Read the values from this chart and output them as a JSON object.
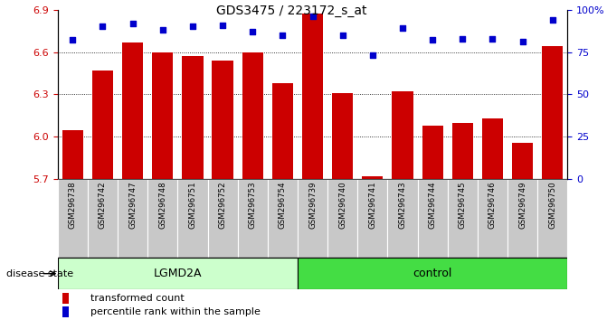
{
  "title": "GDS3475 / 223172_s_at",
  "samples": [
    "GSM296738",
    "GSM296742",
    "GSM296747",
    "GSM296748",
    "GSM296751",
    "GSM296752",
    "GSM296753",
    "GSM296754",
    "GSM296739",
    "GSM296740",
    "GSM296741",
    "GSM296743",
    "GSM296744",
    "GSM296745",
    "GSM296746",
    "GSM296749",
    "GSM296750"
  ],
  "bar_values": [
    6.05,
    6.47,
    6.67,
    6.6,
    6.57,
    6.54,
    6.6,
    6.38,
    6.87,
    6.31,
    5.72,
    6.32,
    6.08,
    6.1,
    6.13,
    5.96,
    6.64
  ],
  "pct_values": [
    82,
    90,
    92,
    88,
    90,
    91,
    87,
    85,
    96,
    85,
    73,
    89,
    82,
    83,
    83,
    81,
    94
  ],
  "ylim_left": [
    5.7,
    6.9
  ],
  "ylim_right": [
    0,
    100
  ],
  "yticks_left": [
    5.7,
    6.0,
    6.3,
    6.6,
    6.9
  ],
  "yticks_right": [
    0,
    25,
    50,
    75,
    100
  ],
  "lgmd2a_count": 8,
  "group_labels": [
    "LGMD2A",
    "control"
  ],
  "group_color_lgmd": "#CCFFCC",
  "group_color_ctrl": "#44DD44",
  "bar_color": "#CC0000",
  "dot_color": "#0000CC",
  "background_color": "#FFFFFF",
  "tick_area_color": "#C8C8C8",
  "grid_values": [
    6.0,
    6.3,
    6.6
  ],
  "legend_items": [
    "transformed count",
    "percentile rank within the sample"
  ]
}
